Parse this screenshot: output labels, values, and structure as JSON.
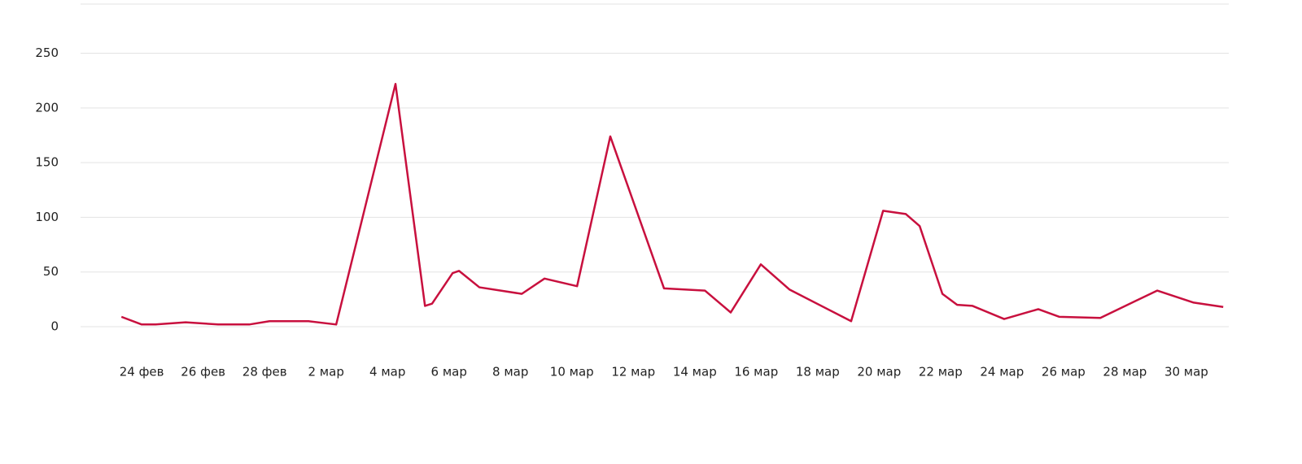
{
  "chart_data": {
    "type": "line",
    "x": [
      54.34,
      55.0,
      55.45,
      56.43,
      57.49,
      58.5,
      59.16,
      60.43,
      61.33,
      63.26,
      64.22,
      64.45,
      65.12,
      65.33,
      65.99,
      67.37,
      68.11,
      69.17,
      70.25,
      72.0,
      73.33,
      74.17,
      75.15,
      76.08,
      78.09,
      79.13,
      79.87,
      80.32,
      81.06,
      81.54,
      82.04,
      83.07,
      84.18,
      84.87,
      86.2,
      88.05,
      89.24,
      90.2
    ],
    "series": [
      {
        "color": "#c8103e",
        "values": [
          9,
          2,
          2,
          4,
          2,
          2,
          5,
          5,
          2,
          222,
          19,
          21,
          49,
          51,
          36,
          30,
          44,
          37,
          174,
          35,
          33,
          13,
          57,
          34,
          5,
          106,
          103,
          92,
          30,
          20,
          19,
          7,
          16,
          9,
          8,
          33,
          22,
          18
        ]
      }
    ],
    "xlim": [
      53.01,
      90.38
    ],
    "xticks": [
      {
        "value": 55,
        "label": "24 фев"
      },
      {
        "value": 57,
        "label": "26 фев"
      },
      {
        "value": 59,
        "label": "28 фев"
      },
      {
        "value": 61,
        "label": "2 мар"
      },
      {
        "value": 63,
        "label": "4 мар"
      },
      {
        "value": 65,
        "label": "6 мар"
      },
      {
        "value": 67,
        "label": "8 мар"
      },
      {
        "value": 69,
        "label": "10 мар"
      },
      {
        "value": 71,
        "label": "12 мар"
      },
      {
        "value": 73,
        "label": "14 мар"
      },
      {
        "value": 75,
        "label": "16 мар"
      },
      {
        "value": 77,
        "label": "18 мар"
      },
      {
        "value": 79,
        "label": "20 мар"
      },
      {
        "value": 81,
        "label": "22 мар"
      },
      {
        "value": 83,
        "label": "24 мар"
      },
      {
        "value": 85,
        "label": "26 мар"
      },
      {
        "value": 87,
        "label": "28 мар"
      },
      {
        "value": 89,
        "label": "30 мар"
      }
    ],
    "ylim": [
      0,
      295
    ],
    "yticks": [
      0,
      50,
      100,
      150,
      200,
      250
    ],
    "grid": true
  }
}
